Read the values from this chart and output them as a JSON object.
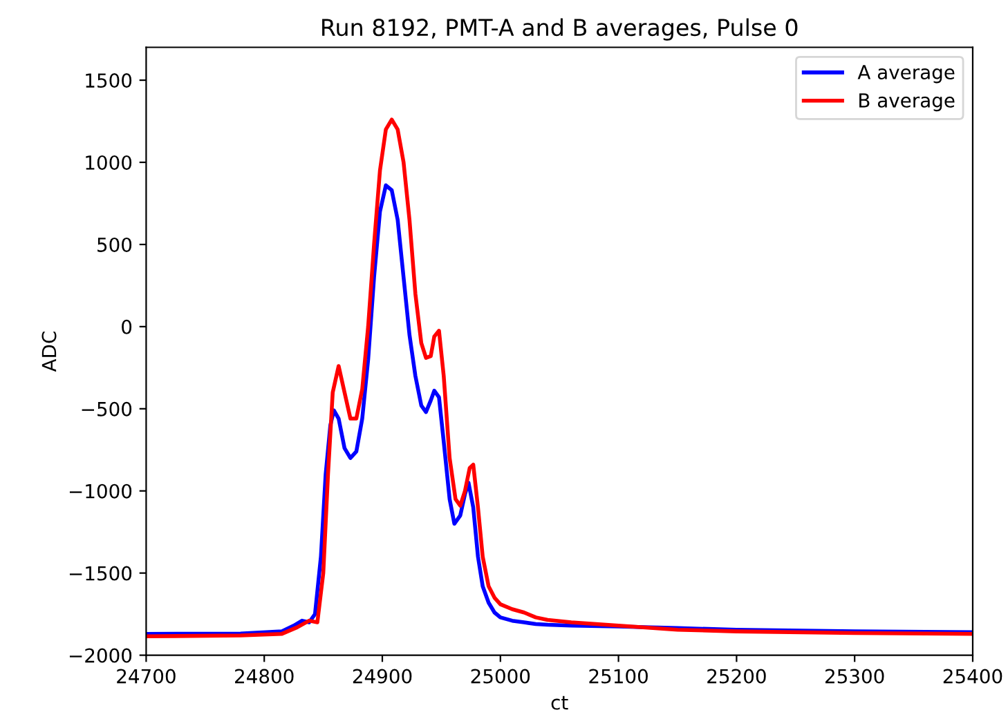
{
  "chart_data": {
    "type": "line",
    "title": "Run 8192, PMT-A and B averages, Pulse 0",
    "xlabel": "ct",
    "ylabel": "ADC",
    "xlim": [
      24700,
      25400
    ],
    "ylim": [
      -2000,
      1700
    ],
    "xticks": [
      24700,
      24800,
      24900,
      25000,
      25100,
      25200,
      25300,
      25400
    ],
    "yticks": [
      -2000,
      -1500,
      -1000,
      -500,
      0,
      500,
      1000,
      1500
    ],
    "legend": "top right",
    "grid": false,
    "series": [
      {
        "name": "A average",
        "color": "#0000ff",
        "x": [
          24700,
          24780,
          24815,
          24825,
          24832,
          24838,
          24843,
          24848,
          24852,
          24856,
          24859,
          24863,
          24868,
          24873,
          24878,
          24883,
          24888,
          24893,
          24898,
          24903,
          24908,
          24913,
          24918,
          24923,
          24928,
          24933,
          24937,
          24941,
          24944,
          24948,
          24952,
          24957,
          24961,
          24966,
          24970,
          24973,
          24977,
          24981,
          24985,
          24990,
          24995,
          25000,
          25010,
          25020,
          25030,
          25040,
          25060,
          25100,
          25150,
          25200,
          25300,
          25400
        ],
        "values": [
          -1870,
          -1868,
          -1855,
          -1820,
          -1790,
          -1800,
          -1750,
          -1400,
          -900,
          -600,
          -510,
          -560,
          -740,
          -800,
          -760,
          -560,
          -200,
          300,
          700,
          860,
          830,
          650,
          300,
          -50,
          -300,
          -480,
          -520,
          -450,
          -390,
          -430,
          -700,
          -1050,
          -1200,
          -1150,
          -1020,
          -950,
          -1100,
          -1400,
          -1580,
          -1680,
          -1740,
          -1770,
          -1790,
          -1800,
          -1810,
          -1815,
          -1820,
          -1825,
          -1835,
          -1845,
          -1855,
          -1860
        ]
      },
      {
        "name": "B average",
        "color": "#ff0000",
        "x": [
          24700,
          24780,
          24815,
          24828,
          24838,
          24845,
          24850,
          24854,
          24858,
          24863,
          24868,
          24873,
          24878,
          24883,
          24888,
          24893,
          24898,
          24903,
          24908,
          24913,
          24918,
          24923,
          24928,
          24933,
          24937,
          24941,
          24944,
          24948,
          24952,
          24957,
          24962,
          24966,
          24970,
          24974,
          24977,
          24981,
          24985,
          24990,
          24995,
          25000,
          25010,
          25020,
          25030,
          25040,
          25060,
          25100,
          25150,
          25200,
          25300,
          25400
        ],
        "values": [
          -1885,
          -1880,
          -1870,
          -1830,
          -1790,
          -1800,
          -1500,
          -900,
          -400,
          -240,
          -400,
          -560,
          -560,
          -380,
          0,
          500,
          950,
          1200,
          1260,
          1200,
          1000,
          650,
          200,
          -100,
          -190,
          -180,
          -60,
          -25,
          -300,
          -800,
          -1050,
          -1090,
          -1000,
          -860,
          -840,
          -1100,
          -1400,
          -1580,
          -1650,
          -1690,
          -1720,
          -1740,
          -1770,
          -1785,
          -1800,
          -1820,
          -1845,
          -1855,
          -1865,
          -1870
        ]
      }
    ]
  }
}
